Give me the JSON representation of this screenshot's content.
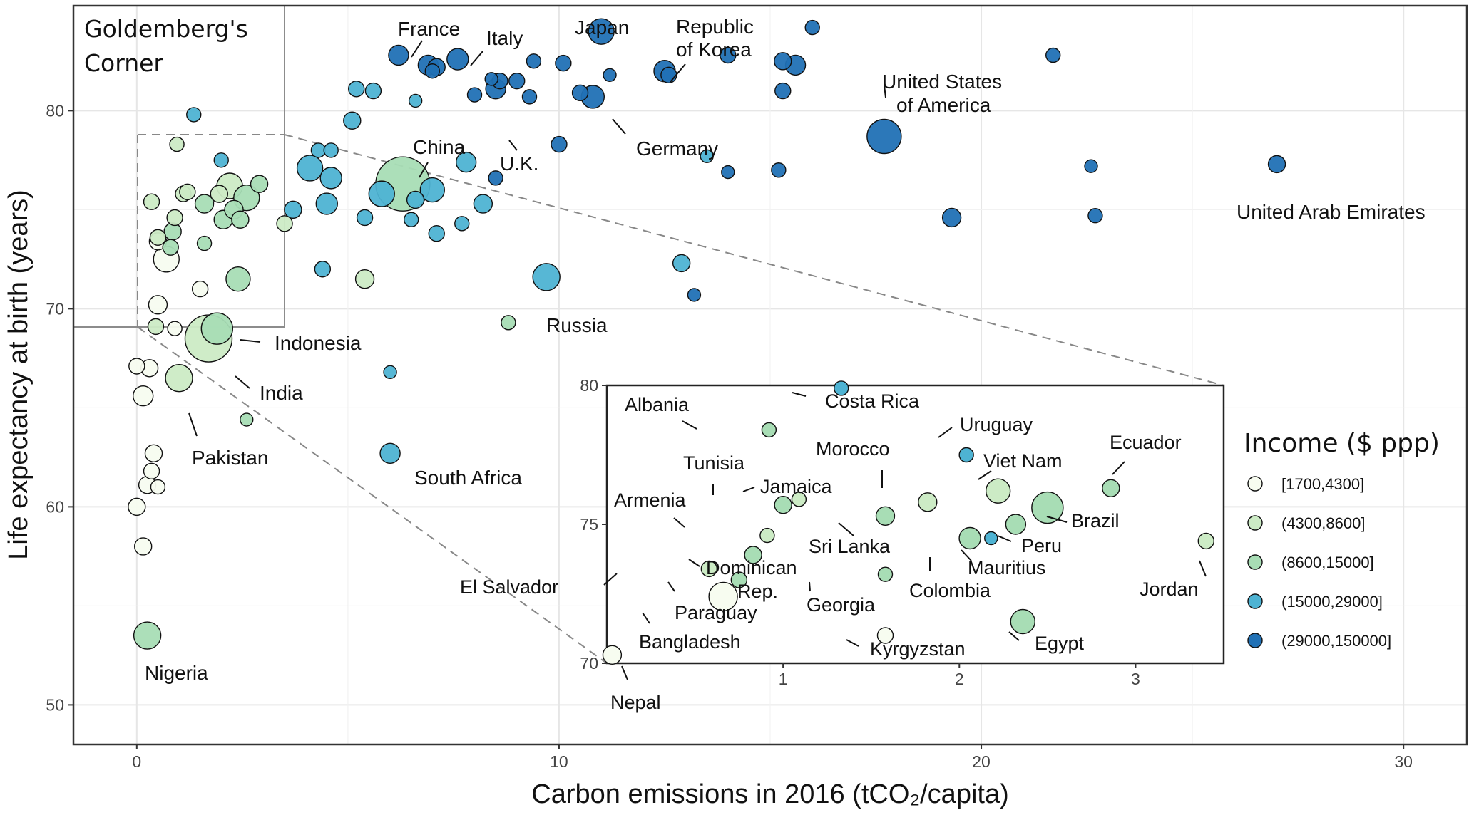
{
  "chart_data": {
    "type": "scatter",
    "title": "",
    "xlabel": "Carbon emissions in 2016 (tCO₂/capita)",
    "ylabel": "Life expectancy at birth (years)",
    "xlim": [
      -1.5,
      31.5
    ],
    "ylim": [
      48,
      85.3
    ],
    "x_ticks": [
      0,
      10,
      20,
      30
    ],
    "y_ticks": [
      50,
      60,
      70,
      80
    ],
    "grid": true,
    "corner_box": {
      "label": "Goldemberg's Corner",
      "x_range": [
        0,
        3.5
      ],
      "y_range": [
        70,
        80
      ]
    },
    "colors": [
      "#f7fcf0",
      "#ccebc5",
      "#a8ddb5",
      "#4eb3d3",
      "#2171b5"
    ],
    "legend": {
      "title": "Income ($ ppp)",
      "entries": [
        "[1700,4300]",
        "(4300,8600]",
        "(8600,15000]",
        "(15000,29000]",
        "(29000,150000]"
      ],
      "placement": "right"
    },
    "points": [
      {
        "x": 6.2,
        "y": 82.8,
        "r": 14,
        "c": 4
      },
      {
        "x": 6.9,
        "y": 82.3,
        "r": 14,
        "c": 4
      },
      {
        "x": 7.1,
        "y": 82.2,
        "r": 12,
        "c": 4
      },
      {
        "x": 7.6,
        "y": 82.6,
        "r": 15,
        "c": 4
      },
      {
        "x": 11.0,
        "y": 84.0,
        "r": 18,
        "c": 4
      },
      {
        "x": 12.5,
        "y": 82.0,
        "r": 15,
        "c": 4
      },
      {
        "x": 12.6,
        "y": 81.8,
        "r": 11,
        "c": 4
      },
      {
        "x": 8.5,
        "y": 81.1,
        "r": 14,
        "c": 4
      },
      {
        "x": 10.8,
        "y": 80.7,
        "r": 16,
        "c": 4
      },
      {
        "x": 10.5,
        "y": 80.9,
        "r": 11,
        "c": 4
      },
      {
        "x": 11.2,
        "y": 81.8,
        "r": 9,
        "c": 4
      },
      {
        "x": 10.1,
        "y": 82.4,
        "r": 11,
        "c": 4
      },
      {
        "x": 17.7,
        "y": 78.7,
        "r": 24,
        "c": 4
      },
      {
        "x": 27.0,
        "y": 77.3,
        "r": 12,
        "c": 4
      },
      {
        "x": 21.7,
        "y": 82.8,
        "r": 10,
        "c": 4
      },
      {
        "x": 16.0,
        "y": 84.2,
        "r": 10,
        "c": 4
      },
      {
        "x": 14.0,
        "y": 82.8,
        "r": 11,
        "c": 4
      },
      {
        "x": 15.3,
        "y": 82.5,
        "r": 12,
        "c": 4
      },
      {
        "x": 15.6,
        "y": 82.3,
        "r": 14,
        "c": 4
      },
      {
        "x": 15.3,
        "y": 81.0,
        "r": 11,
        "c": 4
      },
      {
        "x": 10.0,
        "y": 78.3,
        "r": 11,
        "c": 4
      },
      {
        "x": 8.6,
        "y": 81.5,
        "r": 11,
        "c": 4
      },
      {
        "x": 9.0,
        "y": 81.5,
        "r": 11,
        "c": 4
      },
      {
        "x": 9.4,
        "y": 82.5,
        "r": 10,
        "c": 4
      },
      {
        "x": 9.3,
        "y": 80.7,
        "r": 10,
        "c": 4
      },
      {
        "x": 8.5,
        "y": 76.6,
        "r": 10,
        "c": 4
      },
      {
        "x": 7.0,
        "y": 82.0,
        "r": 10,
        "c": 4
      },
      {
        "x": 8.0,
        "y": 80.8,
        "r": 10,
        "c": 4
      },
      {
        "x": 8.4,
        "y": 81.6,
        "r": 9,
        "c": 4
      },
      {
        "x": 14.0,
        "y": 76.9,
        "r": 9,
        "c": 4
      },
      {
        "x": 15.2,
        "y": 77.0,
        "r": 10,
        "c": 4
      },
      {
        "x": 19.3,
        "y": 74.6,
        "r": 13,
        "c": 4
      },
      {
        "x": 22.6,
        "y": 77.2,
        "r": 9,
        "c": 4
      },
      {
        "x": 22.7,
        "y": 74.7,
        "r": 10,
        "c": 4
      },
      {
        "x": 13.2,
        "y": 70.7,
        "r": 9,
        "c": 4
      },
      {
        "x": 9.7,
        "y": 71.6,
        "r": 19,
        "c": 3
      },
      {
        "x": 13.5,
        "y": 77.7,
        "r": 9,
        "c": 3
      },
      {
        "x": 12.9,
        "y": 72.3,
        "r": 12,
        "c": 3
      },
      {
        "x": 5.2,
        "y": 81.1,
        "r": 11,
        "c": 3
      },
      {
        "x": 5.6,
        "y": 81.0,
        "r": 11,
        "c": 3
      },
      {
        "x": 6.6,
        "y": 80.5,
        "r": 9,
        "c": 3
      },
      {
        "x": 5.1,
        "y": 79.5,
        "r": 12,
        "c": 3
      },
      {
        "x": 4.3,
        "y": 78.0,
        "r": 10,
        "c": 3
      },
      {
        "x": 4.6,
        "y": 78.0,
        "r": 10,
        "c": 3
      },
      {
        "x": 4.1,
        "y": 77.1,
        "r": 18,
        "c": 3
      },
      {
        "x": 4.6,
        "y": 76.6,
        "r": 15,
        "c": 3
      },
      {
        "x": 5.8,
        "y": 75.8,
        "r": 18,
        "c": 3
      },
      {
        "x": 4.5,
        "y": 75.3,
        "r": 15,
        "c": 3
      },
      {
        "x": 3.7,
        "y": 75.0,
        "r": 12,
        "c": 3
      },
      {
        "x": 5.4,
        "y": 74.6,
        "r": 11,
        "c": 3
      },
      {
        "x": 6.5,
        "y": 74.5,
        "r": 10,
        "c": 3
      },
      {
        "x": 7.1,
        "y": 73.8,
        "r": 11,
        "c": 3
      },
      {
        "x": 7.7,
        "y": 74.3,
        "r": 10,
        "c": 3
      },
      {
        "x": 8.2,
        "y": 75.3,
        "r": 13,
        "c": 3
      },
      {
        "x": 7.8,
        "y": 77.4,
        "r": 14,
        "c": 3
      },
      {
        "x": 6.6,
        "y": 75.5,
        "r": 12,
        "c": 3
      },
      {
        "x": 7.0,
        "y": 76.0,
        "r": 17,
        "c": 3
      },
      {
        "x": 4.4,
        "y": 72.0,
        "r": 11,
        "c": 3
      },
      {
        "x": 6.0,
        "y": 66.8,
        "r": 9,
        "c": 3
      },
      {
        "x": 6.0,
        "y": 62.7,
        "r": 14,
        "c": 3
      },
      {
        "x": 8.8,
        "y": 69.3,
        "r": 10,
        "c": 2
      },
      {
        "x": 5.4,
        "y": 71.5,
        "r": 13,
        "c": 1
      },
      {
        "x": 3.5,
        "y": 74.3,
        "r": 11,
        "c": 1
      },
      {
        "x": 6.3,
        "y": 76.3,
        "r": 38,
        "c": 2
      },
      {
        "x": 1.9,
        "y": 69.0,
        "r": 22,
        "c": 2
      },
      {
        "x": 1.7,
        "y": 68.5,
        "r": 33,
        "c": 1
      },
      {
        "x": 1.0,
        "y": 66.5,
        "r": 19,
        "c": 1
      },
      {
        "x": 0.25,
        "y": 53.5,
        "r": 19,
        "c": 2
      },
      {
        "x": 0.0,
        "y": 67.1,
        "r": 11,
        "c": 0
      },
      {
        "x": 0.3,
        "y": 67.0,
        "r": 12,
        "c": 0
      },
      {
        "x": 0.15,
        "y": 65.6,
        "r": 14,
        "c": 0
      },
      {
        "x": 0.4,
        "y": 62.7,
        "r": 12,
        "c": 0
      },
      {
        "x": 0.35,
        "y": 61.8,
        "r": 11,
        "c": 0
      },
      {
        "x": 0.25,
        "y": 61.1,
        "r": 12,
        "c": 0
      },
      {
        "x": 0.5,
        "y": 61.0,
        "r": 10,
        "c": 0
      },
      {
        "x": 0.0,
        "y": 60.0,
        "r": 12,
        "c": 0
      },
      {
        "x": 0.15,
        "y": 58.0,
        "r": 12,
        "c": 0
      },
      {
        "x": 0.9,
        "y": 69.0,
        "r": 10,
        "c": 0
      },
      {
        "x": 0.5,
        "y": 70.2,
        "r": 13,
        "c": 0
      },
      {
        "x": 1.5,
        "y": 71.0,
        "r": 11,
        "c": 0
      },
      {
        "x": 0.7,
        "y": 72.5,
        "r": 18,
        "c": 0
      },
      {
        "x": 0.5,
        "y": 73.4,
        "r": 12,
        "c": 0
      },
      {
        "x": 0.45,
        "y": 69.1,
        "r": 11,
        "c": 1
      },
      {
        "x": 0.95,
        "y": 78.3,
        "r": 10,
        "c": 1
      },
      {
        "x": 1.35,
        "y": 79.8,
        "r": 10,
        "c": 3
      },
      {
        "x": 0.35,
        "y": 75.4,
        "r": 11,
        "c": 1
      },
      {
        "x": 1.1,
        "y": 75.8,
        "r": 11,
        "c": 1
      },
      {
        "x": 1.2,
        "y": 75.9,
        "r": 11,
        "c": 1
      },
      {
        "x": 0.9,
        "y": 74.6,
        "r": 11,
        "c": 1
      },
      {
        "x": 0.85,
        "y": 73.9,
        "r": 12,
        "c": 2
      },
      {
        "x": 0.8,
        "y": 73.1,
        "r": 11,
        "c": 2
      },
      {
        "x": 0.5,
        "y": 73.6,
        "r": 11,
        "c": 1
      },
      {
        "x": 1.6,
        "y": 75.3,
        "r": 13,
        "c": 2
      },
      {
        "x": 1.6,
        "y": 73.3,
        "r": 10,
        "c": 2
      },
      {
        "x": 2.0,
        "y": 77.5,
        "r": 10,
        "c": 3
      },
      {
        "x": 2.2,
        "y": 76.2,
        "r": 18,
        "c": 1
      },
      {
        "x": 1.95,
        "y": 75.8,
        "r": 12,
        "c": 1
      },
      {
        "x": 2.6,
        "y": 75.6,
        "r": 18,
        "c": 2
      },
      {
        "x": 2.9,
        "y": 76.3,
        "r": 12,
        "c": 2
      },
      {
        "x": 2.05,
        "y": 74.5,
        "r": 13,
        "c": 2
      },
      {
        "x": 2.3,
        "y": 75.0,
        "r": 13,
        "c": 2
      },
      {
        "x": 2.45,
        "y": 74.5,
        "r": 12,
        "c": 2
      },
      {
        "x": 2.4,
        "y": 71.5,
        "r": 17,
        "c": 2
      },
      {
        "x": 2.6,
        "y": 64.4,
        "r": 9,
        "c": 2
      }
    ],
    "annotations": [
      {
        "text": "France",
        "x": 6.2,
        "y": 82.8
      },
      {
        "text": "Italy",
        "x": 7.6,
        "y": 82.6
      },
      {
        "text": "Japan",
        "x": 11.0,
        "y": 84.0
      },
      {
        "text": "Republic",
        "x": 12.5,
        "y": 82.0
      },
      {
        "text": "of Korea",
        "x": 12.5,
        "y": 82.0
      },
      {
        "text": "United States",
        "x": 17.7,
        "y": 78.7
      },
      {
        "text": "of America",
        "x": 17.7,
        "y": 78.7
      },
      {
        "text": "China",
        "x": 6.3,
        "y": 76.3
      },
      {
        "text": "U.K.",
        "x": 8.6,
        "y": 81.0
      },
      {
        "text": "Germany",
        "x": 10.8,
        "y": 80.7
      },
      {
        "text": "United Arab Emirates",
        "x": 27.0,
        "y": 77.3
      },
      {
        "text": "Russia",
        "x": 9.7,
        "y": 71.6
      },
      {
        "text": "Indonesia",
        "x": 1.9,
        "y": 69.0
      },
      {
        "text": "India",
        "x": 1.7,
        "y": 68.5
      },
      {
        "text": "Pakistan",
        "x": 1.0,
        "y": 66.5
      },
      {
        "text": "South Africa",
        "x": 6.0,
        "y": 62.7
      },
      {
        "text": "Nigeria",
        "x": 0.25,
        "y": 53.5
      }
    ],
    "inset": {
      "xlim": [
        0.0,
        3.5
      ],
      "ylim": [
        70,
        80
      ],
      "x_ticks": [
        1,
        2,
        3
      ],
      "y_ticks": [
        70,
        75,
        80
      ],
      "points": [
        {
          "name": "Costa Rica",
          "x": 1.33,
          "y": 79.9,
          "r": 10,
          "c": 3
        },
        {
          "name": "Albania",
          "x": 0.92,
          "y": 78.4,
          "r": 10,
          "c": 2
        },
        {
          "name": "Uruguay",
          "x": 2.04,
          "y": 77.5,
          "r": 10,
          "c": 3
        },
        {
          "name": "Morocco",
          "x": 1.82,
          "y": 75.8,
          "r": 13,
          "c": 1
        },
        {
          "name": "Viet Nam",
          "x": 2.22,
          "y": 76.2,
          "r": 17,
          "c": 1
        },
        {
          "name": "Ecuador",
          "x": 2.86,
          "y": 76.3,
          "r": 12,
          "c": 2
        },
        {
          "name": "Brazil",
          "x": 2.5,
          "y": 75.6,
          "r": 22,
          "c": 2
        },
        {
          "name": "Tunisia",
          "x": 1.0,
          "y": 75.7,
          "r": 12,
          "c": 2
        },
        {
          "name": "Jamaica",
          "x": 1.09,
          "y": 75.9,
          "r": 10,
          "c": 1
        },
        {
          "name": "Sri Lanka",
          "x": 1.58,
          "y": 75.3,
          "r": 13,
          "c": 2
        },
        {
          "name": "Colombia",
          "x": 2.06,
          "y": 74.5,
          "r": 15,
          "c": 2
        },
        {
          "name": "Mauritius",
          "x": 2.18,
          "y": 74.5,
          "r": 9,
          "c": 3
        },
        {
          "name": "Peru",
          "x": 2.32,
          "y": 75.0,
          "r": 14,
          "c": 2
        },
        {
          "name": "Jordan",
          "x": 3.4,
          "y": 74.4,
          "r": 11,
          "c": 1
        },
        {
          "name": "Armenia",
          "x": 0.91,
          "y": 74.6,
          "r": 10,
          "c": 1
        },
        {
          "name": "Dominican Rep.",
          "x": 0.83,
          "y": 73.9,
          "r": 12,
          "c": 2
        },
        {
          "name": "Paraguay",
          "x": 0.75,
          "y": 73.0,
          "r": 11,
          "c": 2
        },
        {
          "name": "El Salvador",
          "x": 0.58,
          "y": 73.4,
          "r": 11,
          "c": 1
        },
        {
          "name": "Georgia",
          "x": 1.58,
          "y": 73.2,
          "r": 10,
          "c": 2
        },
        {
          "name": "Bangladesh",
          "x": 0.66,
          "y": 72.4,
          "r": 20,
          "c": 0
        },
        {
          "name": "Egypt",
          "x": 2.36,
          "y": 71.5,
          "r": 17,
          "c": 2
        },
        {
          "name": "Kyrgyzstan",
          "x": 1.58,
          "y": 71.0,
          "r": 11,
          "c": 0
        },
        {
          "name": "Nepal",
          "x": 0.03,
          "y": 70.3,
          "r": 13,
          "c": 0
        }
      ],
      "labels": [
        "Costa Rica",
        "Albania",
        "Uruguay",
        "Morocco",
        "Viet Nam",
        "Ecuador",
        "Tunisia",
        "Jamaica",
        "Brazil",
        "Armenia",
        "Sri Lanka",
        "Peru",
        "Dominican",
        "Rep.",
        "Mauritius",
        "El Salvador",
        "Colombia",
        "Jordan",
        "Georgia",
        "Paraguay",
        "Bangladesh",
        "Egypt",
        "Kyrgyzstan",
        "Nepal"
      ]
    }
  }
}
